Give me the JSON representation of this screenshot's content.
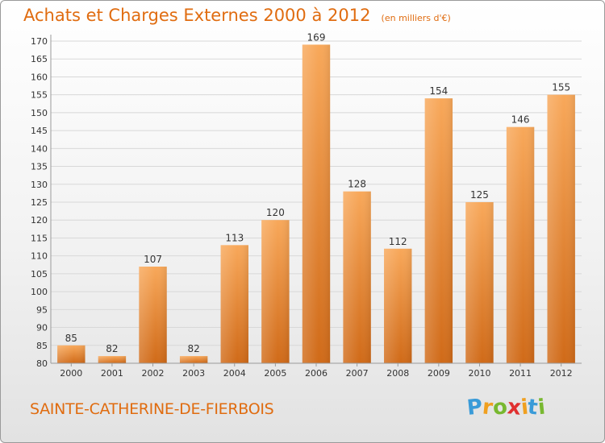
{
  "header": {
    "title": "Achats et Charges Externes 2000 à 2012",
    "subtitle": "(en milliers d'€)"
  },
  "footer": {
    "city": "SAINTE-CATHERINE-DE-FIERBOIS",
    "logo_letters": [
      "P",
      "r",
      "o",
      "x",
      "i",
      "t",
      "i"
    ],
    "logo_colors": [
      "#3a9bd8",
      "#f0a020",
      "#78b830",
      "#e03030",
      "#f0a020",
      "#3a9bd8",
      "#78b830"
    ]
  },
  "colors": {
    "bar_top": "#f8a85a",
    "bar_bottom": "#d06a18",
    "accent": "#e06c10",
    "grid": "#d8d8d8",
    "axis_text": "#333333"
  },
  "chart_data": {
    "type": "bar",
    "categories": [
      "2000",
      "2001",
      "2002",
      "2003",
      "2004",
      "2005",
      "2006",
      "2007",
      "2008",
      "2009",
      "2010",
      "2011",
      "2012"
    ],
    "values": [
      85,
      82,
      107,
      82,
      113,
      120,
      169,
      128,
      112,
      154,
      125,
      146,
      155
    ],
    "title": "Achats et Charges Externes 2000 à 2012",
    "subtitle": "(en milliers d'€)",
    "xlabel": "",
    "ylabel": "",
    "ylim": [
      80,
      170
    ],
    "yticks": [
      80,
      85,
      90,
      95,
      100,
      105,
      110,
      115,
      120,
      125,
      130,
      135,
      140,
      145,
      150,
      155,
      160,
      165,
      170
    ],
    "grid": true,
    "legend": "none"
  }
}
